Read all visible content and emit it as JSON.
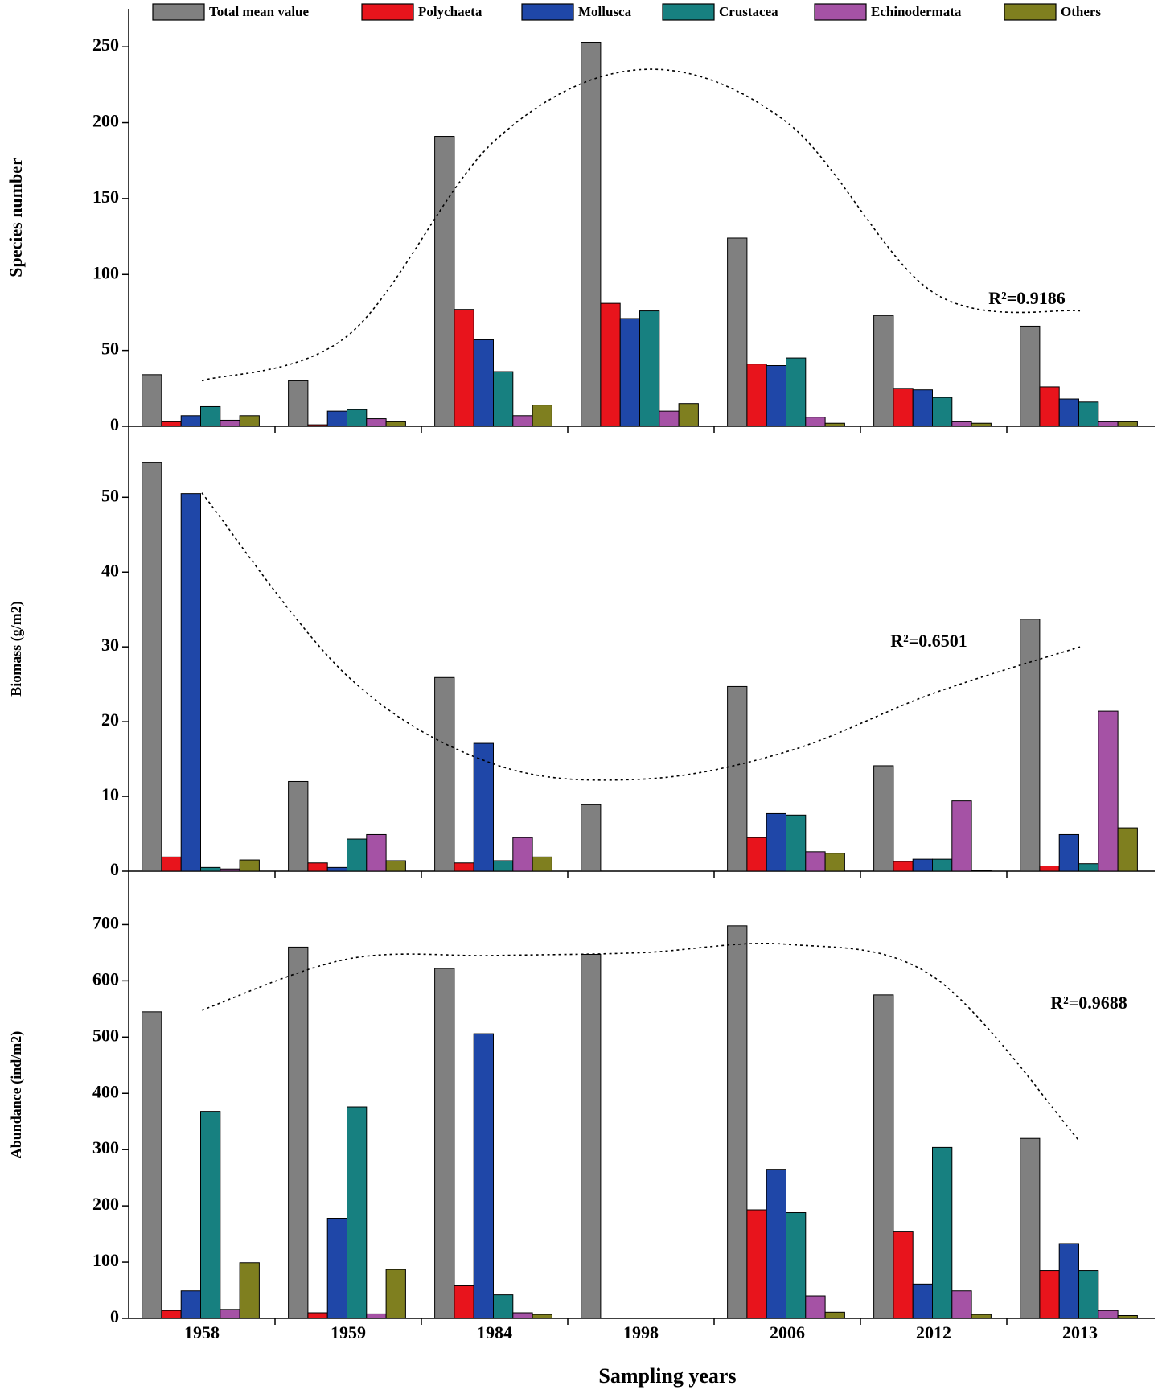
{
  "chart_data": [
    {
      "type": "bar",
      "y_label": "Species number",
      "ylim": [
        0,
        275
      ],
      "yticks": [
        0,
        50,
        100,
        150,
        200,
        250
      ],
      "series": [
        {
          "name": "Total mean value",
          "color": "#808080",
          "values": [
            34,
            30,
            191,
            253,
            124,
            73,
            66
          ]
        },
        {
          "name": "Polychaeta",
          "color": "#e8141c",
          "values": [
            3,
            1,
            77,
            81,
            41,
            25,
            26
          ]
        },
        {
          "name": "Mollusca",
          "color": "#1f47a8",
          "values": [
            7,
            10,
            57,
            71,
            40,
            24,
            18
          ]
        },
        {
          "name": "Crustacea",
          "color": "#178080",
          "values": [
            13,
            11,
            36,
            76,
            45,
            19,
            16
          ]
        },
        {
          "name": "Echinodermata",
          "color": "#a552a5",
          "values": [
            4,
            5,
            7,
            10,
            6,
            3,
            3
          ]
        },
        {
          "name": "Others",
          "color": "#7f7f1f",
          "values": [
            7,
            3,
            14,
            15,
            2,
            2,
            3
          ]
        }
      ],
      "trendline": [
        30,
        60,
        188,
        235,
        200,
        88,
        76
      ],
      "annotation": "R²=0.9186"
    },
    {
      "type": "bar",
      "y_label": "Biomass (g/m2)",
      "ylim": [
        0,
        59.5
      ],
      "yticks": [
        0,
        10,
        20,
        30,
        40,
        50
      ],
      "series": [
        {
          "values": [
            54.7,
            12,
            25.9,
            8.9,
            24.7,
            14.1,
            33.7
          ]
        },
        {
          "values": [
            1.9,
            1.1,
            1.1,
            0,
            4.5,
            1.3,
            0.7
          ]
        },
        {
          "values": [
            50.5,
            0.5,
            17.1,
            0,
            7.7,
            1.6,
            4.9
          ]
        },
        {
          "values": [
            0.5,
            4.3,
            1.4,
            0,
            7.5,
            1.6,
            1.0
          ]
        },
        {
          "values": [
            0.3,
            4.9,
            4.5,
            0,
            2.6,
            9.4,
            21.4
          ]
        },
        {
          "values": [
            1.5,
            1.4,
            1.9,
            0,
            2.4,
            0.1,
            5.8
          ]
        }
      ],
      "trendline": [
        50.6,
        26,
        14.3,
        12.3,
        16,
        23.8,
        30
      ],
      "annotation": "R²=0.6501"
    },
    {
      "type": "bar",
      "y_label": "Abundance  (ind/m2)",
      "ylim": [
        0,
        795
      ],
      "yticks": [
        0,
        100,
        200,
        300,
        400,
        500,
        600,
        700
      ],
      "categories": [
        "1958",
        "1959",
        "1984",
        "1998",
        "2006",
        "2012",
        "2013"
      ],
      "x_label": "Sampling years",
      "series": [
        {
          "values": [
            545,
            660,
            622,
            647,
            698,
            575,
            320
          ]
        },
        {
          "values": [
            14,
            10,
            58,
            0,
            193,
            155,
            85
          ]
        },
        {
          "values": [
            49,
            178,
            506,
            0,
            265,
            61,
            133
          ]
        },
        {
          "values": [
            368,
            376,
            42,
            0,
            188,
            304,
            85
          ]
        },
        {
          "values": [
            16,
            8,
            10,
            0,
            40,
            49,
            14
          ]
        },
        {
          "values": [
            99,
            87,
            7,
            0,
            11,
            7,
            5
          ]
        }
      ],
      "trendline": [
        548,
        639,
        645,
        650,
        665,
        607,
        314
      ],
      "annotation": "R²=0.9688"
    }
  ]
}
